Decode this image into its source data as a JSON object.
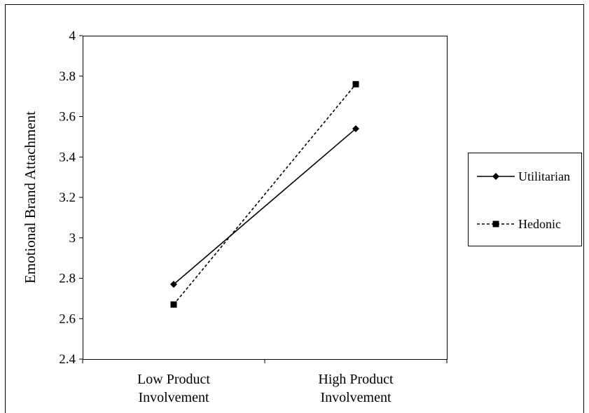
{
  "chart_data": {
    "type": "line",
    "categories": [
      "Low Product\nInvolvement",
      "High Product\nInvolvement"
    ],
    "series": [
      {
        "name": "Utilitarian",
        "values": [
          2.77,
          3.54
        ],
        "marker": "diamond",
        "dash": "solid",
        "color": "#000000"
      },
      {
        "name": "Hedonic",
        "values": [
          2.67,
          3.76
        ],
        "marker": "square",
        "dash": "dashed",
        "color": "#000000"
      }
    ],
    "title": "",
    "xlabel": "",
    "ylabel": "Emotional Brand Attachment",
    "ylim": [
      2.4,
      4
    ],
    "yticks": [
      2.4,
      2.6,
      2.8,
      3,
      3.2,
      3.4,
      3.6,
      3.8,
      4
    ],
    "grid": false,
    "legend": "right"
  }
}
